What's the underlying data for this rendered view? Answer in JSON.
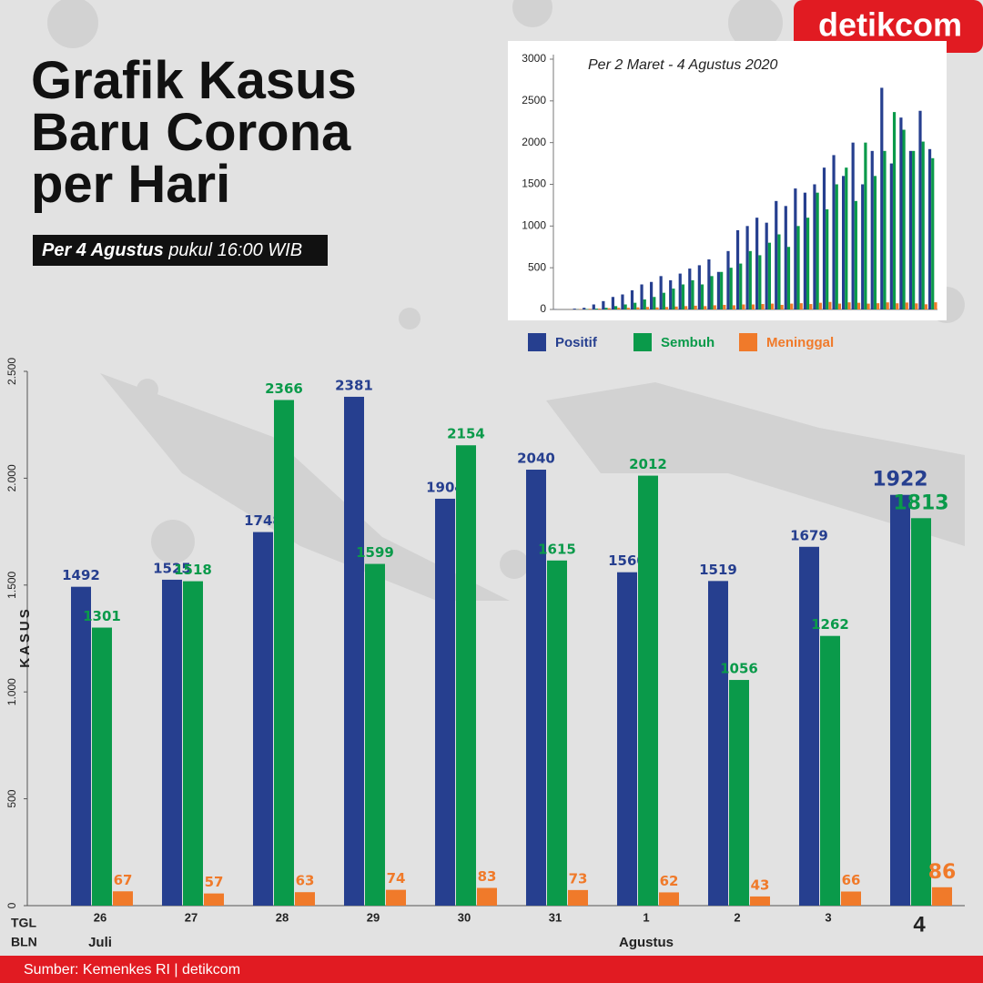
{
  "header": {
    "title_lines": [
      "Grafik Kasus",
      "Baru Corona",
      "per Hari"
    ],
    "subtitle_bold": "Per 4 Agustus",
    "subtitle_rest": "pukul 16:00 WIB",
    "logo": "detikcom"
  },
  "footer": {
    "source": "Sumber: Kemenkes RI | detikcom"
  },
  "chart_data": [
    {
      "type": "bar",
      "y_label": "KASUS",
      "x_label_day": "TGL",
      "x_label_month": "BLN",
      "categories": [
        "26",
        "27",
        "28",
        "29",
        "30",
        "31",
        "1",
        "2",
        "3",
        "4"
      ],
      "months": [
        {
          "label": "Juli",
          "start": 0
        },
        {
          "label": "Agustus",
          "start": 6
        }
      ],
      "series": [
        {
          "name": "Positif",
          "color": "#263f8f",
          "values": [
            1492,
            1525,
            1748,
            2381,
            1904,
            2040,
            1560,
            1519,
            1679,
            1922
          ]
        },
        {
          "name": "Sembuh",
          "color": "#0a9a4a",
          "values": [
            1301,
            1518,
            2366,
            1599,
            2154,
            1615,
            2012,
            1056,
            1262,
            1813
          ]
        },
        {
          "name": "Meninggal",
          "color": "#f07a2a",
          "values": [
            67,
            57,
            63,
            74,
            83,
            73,
            62,
            43,
            66,
            86
          ]
        }
      ],
      "ylim": [
        0,
        2500
      ],
      "yticks": [
        0,
        {
          "value": 500,
          "label": "500"
        },
        {
          "value": 1000,
          "label": "1.000"
        },
        {
          "value": 1500,
          "label": "1.500"
        },
        {
          "value": 2000,
          "label": "2.000"
        },
        {
          "value": 2500,
          "label": "2.500"
        }
      ]
    },
    {
      "type": "bar",
      "title": "Per 2 Maret - 4 Agustus 2020",
      "series": [
        {
          "name": "Positif",
          "color": "#263f8f",
          "values": [
            2,
            0,
            10,
            20,
            60,
            100,
            150,
            180,
            230,
            300,
            330,
            400,
            350,
            430,
            490,
            530,
            600,
            450,
            700,
            950,
            1000,
            1100,
            1040,
            1300,
            1240,
            1450,
            1400,
            1500,
            1700,
            1850,
            1600,
            2000,
            1500,
            1900,
            2657,
            1750,
            2300,
            1900,
            2381,
            1922
          ]
        },
        {
          "name": "Sembuh",
          "color": "#0a9a4a",
          "values": [
            0,
            0,
            1,
            5,
            10,
            20,
            40,
            60,
            80,
            120,
            150,
            200,
            250,
            300,
            350,
            300,
            400,
            450,
            500,
            550,
            700,
            650,
            800,
            900,
            750,
            1000,
            1100,
            1400,
            1200,
            1500,
            1700,
            1300,
            2000,
            1600,
            1900,
            2366,
            2154,
            1900,
            2012,
            1813
          ]
        },
        {
          "name": "Meninggal",
          "color": "#f07a2a",
          "values": [
            0,
            1,
            4,
            8,
            10,
            15,
            20,
            20,
            25,
            30,
            25,
            30,
            35,
            40,
            45,
            40,
            50,
            55,
            50,
            60,
            60,
            65,
            70,
            55,
            70,
            75,
            65,
            80,
            90,
            70,
            85,
            80,
            70,
            75,
            85,
            74,
            83,
            73,
            62,
            86
          ]
        }
      ],
      "ylim": [
        0,
        3000
      ],
      "yticks": [
        0,
        500,
        1000,
        1500,
        2000,
        2500,
        3000
      ]
    }
  ]
}
